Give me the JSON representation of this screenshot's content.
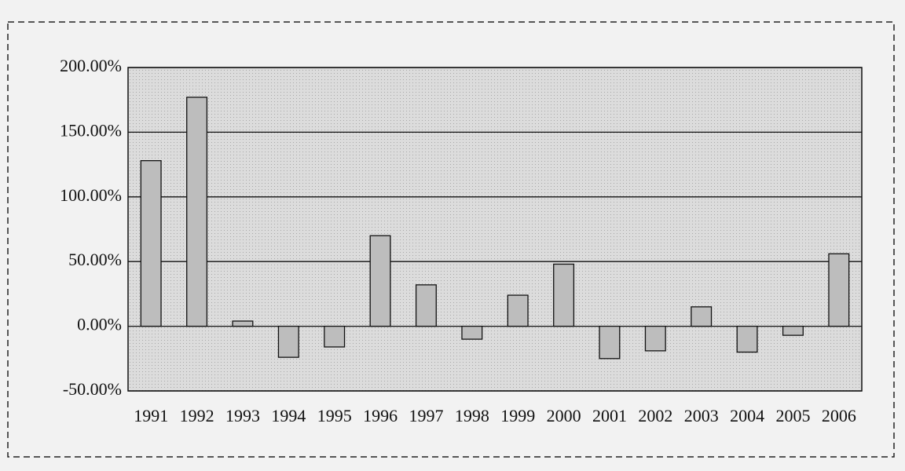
{
  "chart_data": {
    "type": "bar",
    "categories": [
      "1991",
      "1992",
      "1993",
      "1994",
      "1995",
      "1996",
      "1997",
      "1998",
      "1999",
      "2000",
      "2001",
      "2002",
      "2003",
      "2004",
      "2005",
      "2006"
    ],
    "values": [
      128,
      177,
      4,
      -24,
      -16,
      70,
      32,
      -10,
      24,
      48,
      -25,
      -19,
      15,
      -20,
      -7,
      56
    ],
    "color": "#bdbdbd",
    "ylim": [
      -50,
      200
    ],
    "yticks": [
      {
        "value": -50,
        "label": "-50.00%"
      },
      {
        "value": 0,
        "label": "0.00%"
      },
      {
        "value": 50,
        "label": "50.00%"
      },
      {
        "value": 100,
        "label": "100.00%"
      },
      {
        "value": 150,
        "label": "150.00%"
      },
      {
        "value": 200,
        "label": "200.00%"
      }
    ],
    "grid": true
  }
}
